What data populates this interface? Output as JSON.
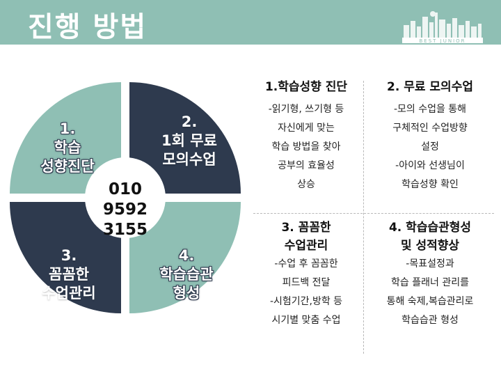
{
  "page_title": "진행 방법",
  "logo_text": "BEST JUNIOR",
  "center_phone": [
    "010",
    "9592",
    "3155"
  ],
  "quadrants": [
    {
      "lines": [
        "1.",
        "학습",
        "성향진단"
      ],
      "color": "#8fbfb4"
    },
    {
      "lines": [
        "2.",
        "1회 무료",
        "모의수업"
      ],
      "color": "#2e3a4e"
    },
    {
      "lines": [
        "3.",
        "꼼꼼한",
        "수업관리"
      ],
      "color": "#2e3a4e"
    },
    {
      "lines": [
        "4.",
        "학습습관",
        "형성"
      ],
      "color": "#8fbfb4"
    }
  ],
  "cards": [
    {
      "title": [
        "1.학습성향 진단"
      ],
      "lines": [
        "-읽기형, 쓰기형 등",
        "자신에게 맞는",
        "학습 방법을 찾아",
        "공부의 효율성",
        "상승"
      ]
    },
    {
      "title": [
        "2. 무료 모의수업"
      ],
      "lines": [
        "-모의 수업을 통해",
        "구체적인 수업방향",
        "설정",
        "-아이와 선생님이",
        "학습성향 확인"
      ]
    },
    {
      "title": [
        "3. 꼼꼼한",
        "수업관리"
      ],
      "lines": [
        "-수업 후 꼼꼼한",
        "피드백 전달",
        "-시험기간,방학 등",
        "시기별 맞춤 수업"
      ]
    },
    {
      "title": [
        "4. 학습습관형성",
        "및 성적향상"
      ],
      "lines": [
        "-목표설정과",
        "학습 플래너 관리를",
        "통해 숙제,복습관리로",
        "학습습관 형성"
      ]
    }
  ],
  "colors": {
    "teal": "#8fbfb4",
    "navy": "#2e3a4e",
    "header": "#8fbfb4"
  }
}
